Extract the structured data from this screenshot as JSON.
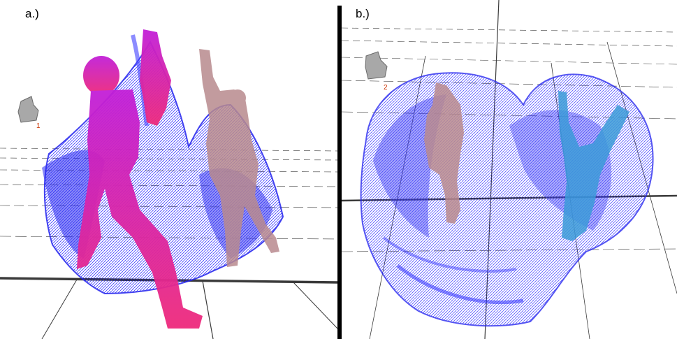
{
  "panels": [
    {
      "label": "a.)",
      "marker": "1"
    },
    {
      "label": "b.)",
      "marker": "2"
    }
  ],
  "colors": {
    "volume": "#2b2bf2",
    "figure_a_front": "#e0209c",
    "figure_a_back": "#b88a8e",
    "figure_b_left": "#b88a8e",
    "figure_b_right": "#3b9ad8",
    "grid": "#3a3a3a",
    "marker": "#cc3300"
  }
}
